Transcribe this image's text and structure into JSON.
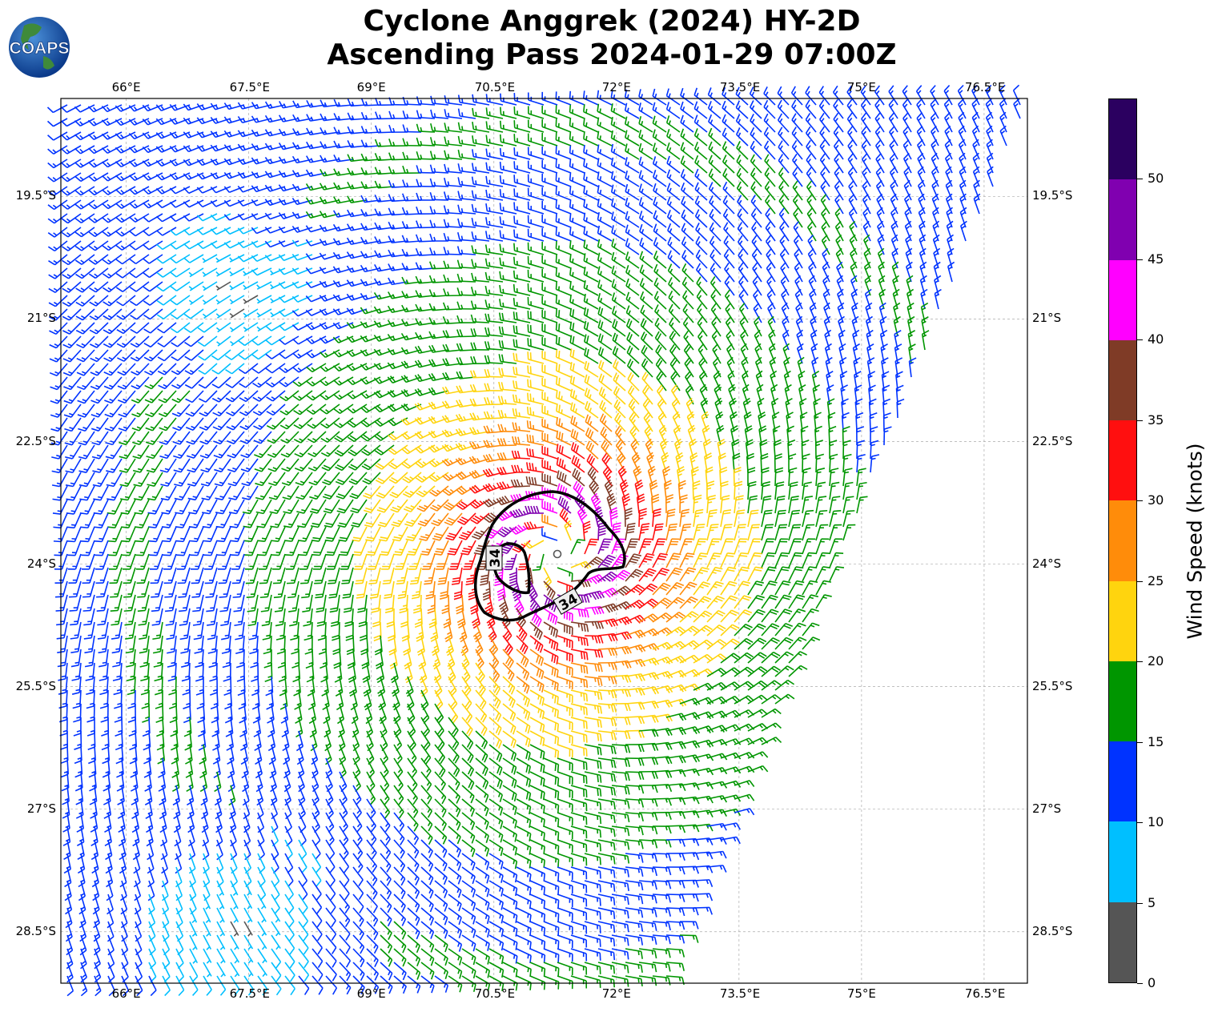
{
  "title_line1": "Cyclone Anggrek (2024) HY-2D",
  "title_line2": "Ascending Pass 2024-01-29 07:00Z",
  "logo_text": "COAPS",
  "lon_ticks": [
    "66°E",
    "67.5°E",
    "69°E",
    "70.5°E",
    "72°E",
    "73.5°E",
    "75°E",
    "76.5°E"
  ],
  "lon_values": [
    66,
    67.5,
    69,
    70.5,
    72,
    73.5,
    75,
    76.5
  ],
  "lat_ticks": [
    "19.5°S",
    "21°S",
    "22.5°S",
    "24°S",
    "25.5°S",
    "27°S",
    "28.5°S"
  ],
  "lat_values": [
    -19.5,
    -21,
    -22.5,
    -24,
    -25.5,
    -27,
    -28.5
  ],
  "map_extent": {
    "lon_min": 65.2,
    "lon_max": 77.03,
    "lat_min": -29.13,
    "lat_max": -18.3
  },
  "cyclone_center": {
    "lon": 71.28,
    "lat": -23.86,
    "max_wind_kt": 50
  },
  "contour_label": "34",
  "colorbar": {
    "label": "Wind Speed (knots)",
    "tick_labels": [
      "0",
      "5",
      "10",
      "15",
      "20",
      "25",
      "30",
      "35",
      "40",
      "45",
      "50"
    ],
    "bounds": [
      0,
      5,
      10,
      15,
      20,
      25,
      30,
      35,
      40,
      45,
      50,
      55
    ],
    "colors": [
      "#555555",
      "#00bfff",
      "#0033ff",
      "#009600",
      "#ffd40e",
      "#ff8c0a",
      "#ff0f0f",
      "#7f3b26",
      "#ff00ff",
      "#8000b0",
      "#2b0060"
    ]
  }
}
